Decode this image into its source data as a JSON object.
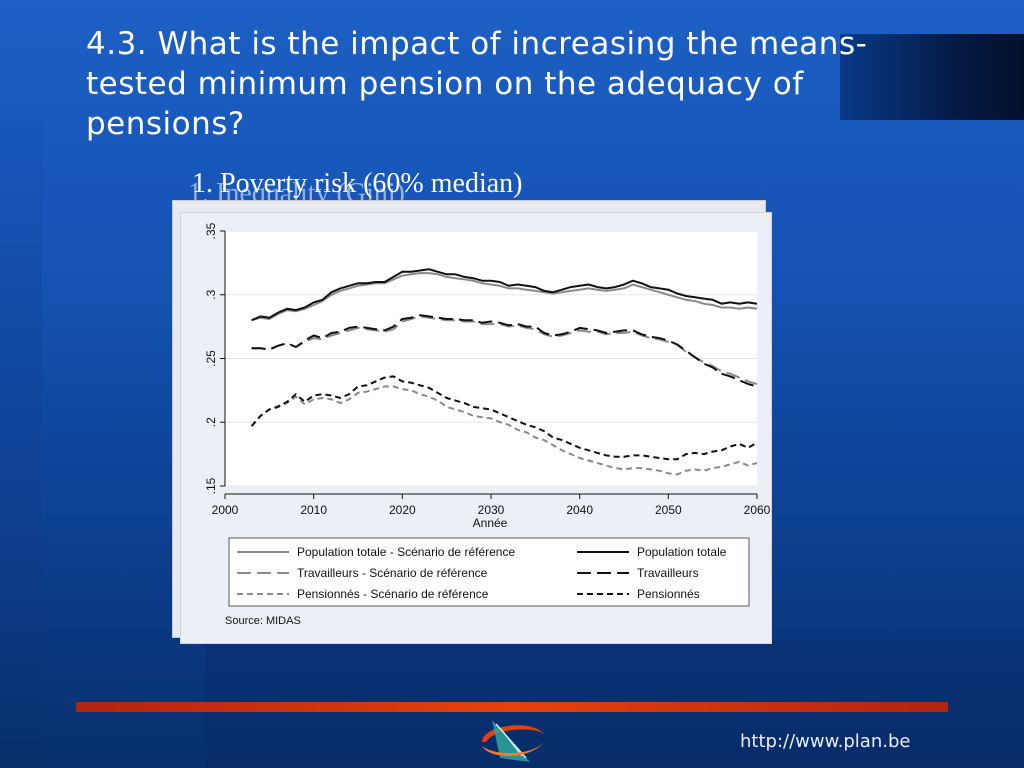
{
  "slide": {
    "title": "4.3. What is the impact of increasing the means-tested minimum pension on the adequacy of pensions?",
    "chart_caption": "1. Poverty risk (60% median)",
    "chart_caption_ghost": "1. Inequality (Gini)",
    "url": "http://www.plan.be",
    "logo_icon": "planbureau-logo-icon"
  },
  "colors": {
    "accent_red": "#e8400c",
    "background_blue": "#1553b4"
  },
  "chart_data": {
    "type": "line",
    "xlabel": "Année",
    "ylabel": "",
    "xlim": [
      2000,
      2060
    ],
    "ylim": [
      0.15,
      0.35
    ],
    "x_ticks": [
      2000,
      2010,
      2020,
      2030,
      2040,
      2050,
      2060
    ],
    "x_tick_labels": [
      "2000",
      "2010",
      "2020",
      "2030",
      "2040",
      "2050",
      "2060"
    ],
    "y_ticks": [
      0.15,
      0.2,
      0.25,
      0.3,
      0.35
    ],
    "y_tick_labels": [
      ".15",
      ".2",
      ".25",
      ".3",
      ".35"
    ],
    "grid": "horizontal",
    "legend_placement": "bottom",
    "source": "Source: MIDAS",
    "x": [
      2003,
      2004,
      2005,
      2006,
      2007,
      2008,
      2009,
      2010,
      2011,
      2012,
      2013,
      2014,
      2015,
      2016,
      2017,
      2018,
      2019,
      2020,
      2021,
      2022,
      2023,
      2024,
      2025,
      2026,
      2027,
      2028,
      2029,
      2030,
      2031,
      2032,
      2033,
      2034,
      2035,
      2036,
      2037,
      2038,
      2039,
      2040,
      2041,
      2042,
      2043,
      2044,
      2045,
      2046,
      2047,
      2048,
      2049,
      2050,
      2051,
      2052,
      2053,
      2054,
      2055,
      2056,
      2057,
      2058,
      2059,
      2060
    ],
    "series": [
      {
        "name": "Population totale - Scénario de référence",
        "color": "#8a8a8a",
        "dash": "solid",
        "values": [
          0.28,
          0.282,
          0.281,
          0.285,
          0.288,
          0.287,
          0.289,
          0.292,
          0.295,
          0.3,
          0.303,
          0.305,
          0.307,
          0.308,
          0.309,
          0.309,
          0.312,
          0.315,
          0.316,
          0.317,
          0.317,
          0.316,
          0.314,
          0.313,
          0.312,
          0.311,
          0.309,
          0.308,
          0.307,
          0.305,
          0.305,
          0.304,
          0.303,
          0.302,
          0.301,
          0.302,
          0.303,
          0.304,
          0.305,
          0.304,
          0.303,
          0.304,
          0.305,
          0.308,
          0.306,
          0.304,
          0.302,
          0.3,
          0.298,
          0.296,
          0.295,
          0.293,
          0.292,
          0.29,
          0.29,
          0.289,
          0.29,
          0.289
        ]
      },
      {
        "name": "Population totale",
        "color": "#111111",
        "dash": "solid",
        "values": [
          0.28,
          0.283,
          0.282,
          0.286,
          0.289,
          0.288,
          0.29,
          0.294,
          0.296,
          0.302,
          0.305,
          0.307,
          0.309,
          0.309,
          0.31,
          0.31,
          0.314,
          0.318,
          0.318,
          0.319,
          0.32,
          0.318,
          0.316,
          0.316,
          0.314,
          0.313,
          0.311,
          0.311,
          0.31,
          0.307,
          0.308,
          0.307,
          0.306,
          0.303,
          0.302,
          0.304,
          0.306,
          0.307,
          0.308,
          0.306,
          0.305,
          0.306,
          0.308,
          0.311,
          0.309,
          0.306,
          0.305,
          0.304,
          0.301,
          0.299,
          0.298,
          0.297,
          0.296,
          0.293,
          0.294,
          0.293,
          0.294,
          0.293
        ]
      },
      {
        "name": "Travailleurs - Scénario de référence",
        "color": "#8a8a8a",
        "dash": "longdash",
        "values": [
          0.258,
          0.258,
          0.257,
          0.26,
          0.262,
          0.259,
          0.263,
          0.266,
          0.265,
          0.268,
          0.27,
          0.272,
          0.274,
          0.273,
          0.272,
          0.271,
          0.273,
          0.279,
          0.281,
          0.283,
          0.282,
          0.281,
          0.28,
          0.28,
          0.279,
          0.279,
          0.277,
          0.277,
          0.277,
          0.275,
          0.276,
          0.274,
          0.273,
          0.269,
          0.267,
          0.268,
          0.27,
          0.272,
          0.271,
          0.271,
          0.269,
          0.27,
          0.27,
          0.271,
          0.268,
          0.266,
          0.265,
          0.263,
          0.261,
          0.255,
          0.251,
          0.247,
          0.244,
          0.24,
          0.238,
          0.235,
          0.232,
          0.23
        ]
      },
      {
        "name": "Travailleurs",
        "color": "#111111",
        "dash": "longdash",
        "values": [
          0.258,
          0.258,
          0.257,
          0.26,
          0.262,
          0.259,
          0.264,
          0.268,
          0.266,
          0.27,
          0.271,
          0.274,
          0.275,
          0.274,
          0.273,
          0.272,
          0.275,
          0.281,
          0.282,
          0.284,
          0.283,
          0.282,
          0.281,
          0.281,
          0.28,
          0.28,
          0.278,
          0.279,
          0.278,
          0.276,
          0.277,
          0.275,
          0.275,
          0.27,
          0.268,
          0.269,
          0.271,
          0.274,
          0.273,
          0.272,
          0.27,
          0.271,
          0.272,
          0.272,
          0.269,
          0.267,
          0.266,
          0.264,
          0.261,
          0.256,
          0.251,
          0.246,
          0.243,
          0.238,
          0.236,
          0.233,
          0.23,
          0.228
        ]
      },
      {
        "name": "Pensionnés - Scénario de référence",
        "color": "#8a8a8a",
        "dash": "dash",
        "values": [
          0.197,
          0.205,
          0.21,
          0.213,
          0.215,
          0.22,
          0.214,
          0.218,
          0.219,
          0.218,
          0.215,
          0.218,
          0.223,
          0.224,
          0.226,
          0.228,
          0.228,
          0.226,
          0.225,
          0.222,
          0.22,
          0.217,
          0.212,
          0.21,
          0.208,
          0.205,
          0.204,
          0.203,
          0.2,
          0.198,
          0.194,
          0.192,
          0.188,
          0.186,
          0.182,
          0.178,
          0.175,
          0.172,
          0.17,
          0.168,
          0.166,
          0.164,
          0.163,
          0.164,
          0.164,
          0.163,
          0.162,
          0.16,
          0.159,
          0.162,
          0.163,
          0.162,
          0.164,
          0.165,
          0.167,
          0.169,
          0.166,
          0.168
        ]
      },
      {
        "name": "Pensionnés",
        "color": "#111111",
        "dash": "dash",
        "values": [
          0.197,
          0.205,
          0.21,
          0.212,
          0.216,
          0.222,
          0.216,
          0.221,
          0.222,
          0.221,
          0.219,
          0.222,
          0.228,
          0.229,
          0.232,
          0.235,
          0.236,
          0.232,
          0.231,
          0.229,
          0.227,
          0.223,
          0.219,
          0.217,
          0.215,
          0.212,
          0.211,
          0.21,
          0.207,
          0.204,
          0.201,
          0.198,
          0.196,
          0.193,
          0.188,
          0.186,
          0.183,
          0.18,
          0.178,
          0.176,
          0.174,
          0.173,
          0.173,
          0.174,
          0.174,
          0.173,
          0.172,
          0.171,
          0.171,
          0.175,
          0.176,
          0.175,
          0.177,
          0.178,
          0.181,
          0.183,
          0.18,
          0.184
        ]
      }
    ]
  }
}
